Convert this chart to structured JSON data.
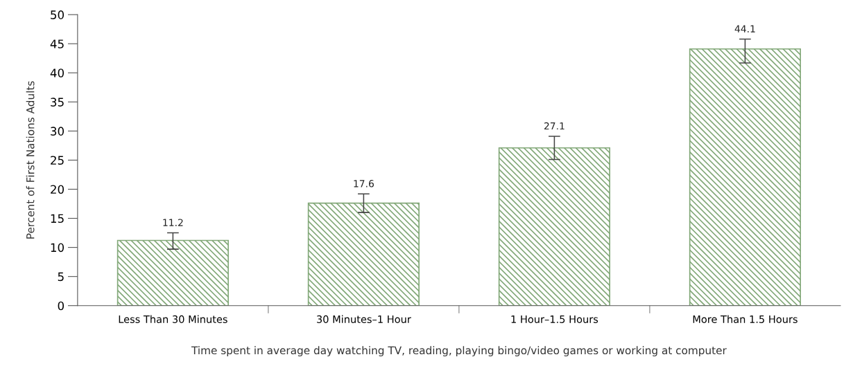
{
  "chart_data": {
    "type": "bar",
    "xlabel": "Time spent in average day watching TV, reading, playing bingo/video games or working at computer",
    "ylabel": "Percent of First Nations Adults",
    "categories": [
      "Less Than 30 Minutes",
      "30 Minutes–1 Hour",
      "1 Hour–1.5 Hours",
      "More Than 1.5 Hours"
    ],
    "values": [
      11.2,
      17.6,
      27.1,
      44.1
    ],
    "errors": [
      [
        9.7,
        12.5
      ],
      [
        16.0,
        19.2
      ],
      [
        25.1,
        29.1
      ],
      [
        41.7,
        45.8
      ]
    ],
    "color": "#82a878",
    "data_labels": true,
    "ylim": [
      0,
      50
    ],
    "yticks": [
      0,
      5,
      10,
      15,
      20,
      25,
      30,
      35,
      40,
      45,
      50
    ],
    "grid": false,
    "legend": false
  }
}
